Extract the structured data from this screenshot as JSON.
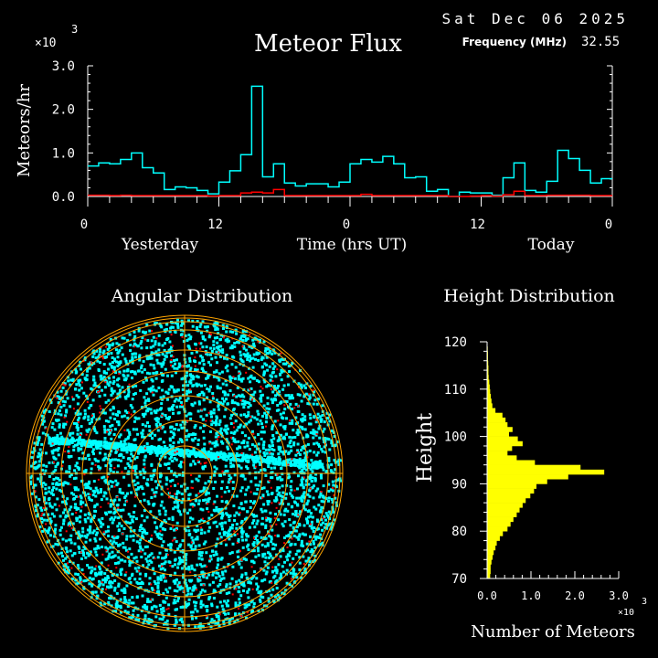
{
  "header": {
    "date": "Sat Dec 06 2025",
    "frequency_label": "Frequency (MHz)",
    "frequency_value": "32.55"
  },
  "colors": {
    "background": "#000000",
    "flux_all": "#00ffff",
    "flux_secondary": "#ff0000",
    "height_bars": "#ffff00",
    "polar_grid": "#ffa500",
    "axes": "#ffffff"
  },
  "chart_data": [
    {
      "type": "line",
      "title": "Meteor Flux",
      "ylabel": "Meteors/hr",
      "xlabel": "Time (hrs UT)",
      "y_multiplier": "x10^3",
      "y_multiplier_base": "×10",
      "y_multiplier_exp": "3",
      "xlim": [
        0,
        48
      ],
      "ylim": [
        0,
        3.0
      ],
      "x_tick_labels": [
        "0",
        "12",
        "0",
        "12",
        "0"
      ],
      "y_tick_labels": [
        "0.0",
        "1.0",
        "2.0",
        "3.0"
      ],
      "day_labels": [
        "Yesterday",
        "Today"
      ],
      "step": true,
      "series": [
        {
          "color": "#00ffff",
          "values": [
            0.7,
            0.77,
            0.75,
            0.85,
            1.0,
            0.66,
            0.54,
            0.16,
            0.22,
            0.2,
            0.14,
            0.06,
            0.33,
            0.59,
            0.96,
            2.53,
            0.45,
            0.75,
            0.31,
            0.24,
            0.29,
            0.29,
            0.22,
            0.33,
            0.75,
            0.85,
            0.79,
            0.92,
            0.75,
            0.43,
            0.45,
            0.12,
            0.16,
            0.0,
            0.1,
            0.08,
            0.08,
            0.03,
            0.43,
            0.77,
            0.14,
            0.1,
            0.35,
            1.06,
            0.87,
            0.6,
            0.31,
            0.41
          ]
        },
        {
          "color": "#ff0000",
          "values": [
            0.03,
            0.03,
            0.02,
            0.03,
            0.02,
            0.02,
            0.02,
            0.02,
            0.02,
            0.02,
            0.02,
            0.01,
            0.02,
            0.02,
            0.08,
            0.1,
            0.08,
            0.16,
            0.02,
            0.02,
            0.02,
            0.02,
            0.02,
            0.02,
            0.02,
            0.05,
            0.02,
            0.02,
            0.02,
            0.02,
            0.02,
            0.02,
            0.02,
            0.0,
            0.0,
            0.01,
            0.02,
            0.01,
            0.04,
            0.12,
            0.02,
            0.02,
            0.03,
            0.03,
            0.03,
            0.03,
            0.02,
            0.02
          ]
        }
      ]
    },
    {
      "type": "scatter",
      "title": "Angular Distribution",
      "projection": "polar",
      "features": "dense cyan detections across sky with a bright east-west band just north of center; sparse red points",
      "point_colors": [
        "#00ffff",
        "#ff0000"
      ]
    },
    {
      "type": "bar",
      "orientation": "horizontal",
      "title": "Height Distribution",
      "ylabel": "Height",
      "xlabel": "Number of Meteors",
      "x_multiplier_base": "×10",
      "x_multiplier_exp": "3",
      "xlim": [
        0,
        3.0
      ],
      "ylim": [
        70,
        120
      ],
      "x_tick_labels": [
        "0.0",
        "1.0",
        "2.0",
        "3.0"
      ],
      "y_tick_labels": [
        "70",
        "80",
        "90",
        "100",
        "110",
        "120"
      ],
      "bin_start": 70,
      "bin_width": 1,
      "values": [
        0.07,
        0.08,
        0.08,
        0.1,
        0.125,
        0.15,
        0.19,
        0.22,
        0.29,
        0.36,
        0.465,
        0.535,
        0.6,
        0.675,
        0.74,
        0.81,
        0.88,
        0.985,
        1.07,
        1.125,
        1.37,
        1.85,
        2.67,
        2.13,
        1.09,
        0.675,
        0.465,
        0.57,
        0.81,
        0.7,
        0.5,
        0.58,
        0.465,
        0.42,
        0.35,
        0.19,
        0.12,
        0.1,
        0.085,
        0.07,
        0.06,
        0.05,
        0.035,
        0.03,
        0.03,
        0.025,
        0.02,
        0.02,
        0.015,
        0.01
      ]
    }
  ]
}
